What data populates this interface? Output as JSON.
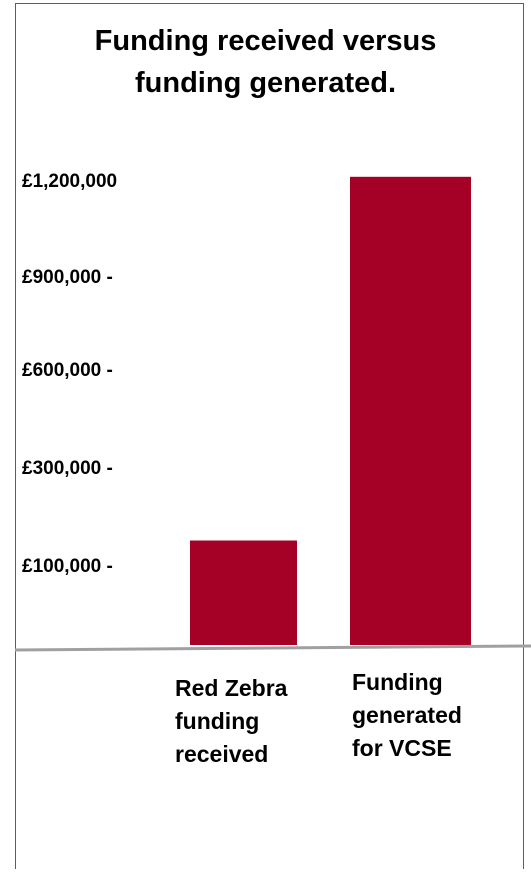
{
  "chart_data": {
    "type": "bar",
    "title": "Funding received versus funding generated.",
    "categories": [
      "Red Zebra funding received",
      "Funding generated for VCSE"
    ],
    "category_label_lines": [
      [
        "Red Zebra",
        "funding",
        "received"
      ],
      [
        "Funding",
        "generated",
        "for VCSE"
      ]
    ],
    "values": [
      150000,
      1210000
    ],
    "yticks": [
      {
        "value": 1200000,
        "label": "£1,200,000"
      },
      {
        "value": 900000,
        "label": "£900,000 -"
      },
      {
        "value": 600000,
        "label": "£600,000 -"
      },
      {
        "value": 300000,
        "label": "£300,000 -"
      },
      {
        "value": 100000,
        "label": "£100,000 -"
      }
    ],
    "xlabel": "",
    "ylabel": "",
    "grid": false,
    "bar_color": "#a50026",
    "axis_color": "#a0a0a0"
  }
}
